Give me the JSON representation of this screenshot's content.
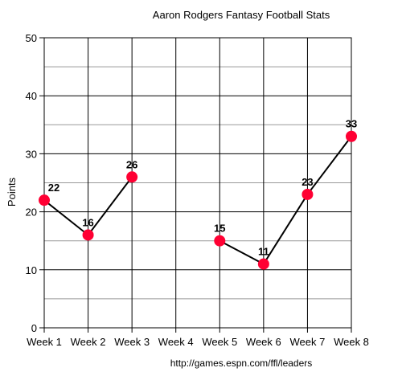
{
  "chart_data": {
    "type": "line",
    "title": "Aaron Rodgers Fantasy Football Stats",
    "xlabel": "",
    "ylabel": "Points",
    "categories": [
      "Week 1",
      "Week 2",
      "Week 3",
      "Week 4",
      "Week 5",
      "Week 6",
      "Week 7",
      "Week 8"
    ],
    "series": [
      {
        "values": [
          22,
          16,
          26,
          null,
          15,
          11,
          23,
          33
        ]
      }
    ],
    "data_labels": [
      "22",
      "16",
      "26",
      "",
      "15",
      "11",
      "23",
      "33"
    ],
    "ylim": [
      0,
      50
    ],
    "yticks": [
      0,
      10,
      20,
      30,
      40,
      50
    ],
    "grid": true,
    "legend": "none",
    "source": "http://games.espn.com/ffl/leaders",
    "colors": {
      "line": "#000000",
      "marker": "#ff0033",
      "grid": "#000000",
      "minor_grid": "#999999"
    }
  }
}
